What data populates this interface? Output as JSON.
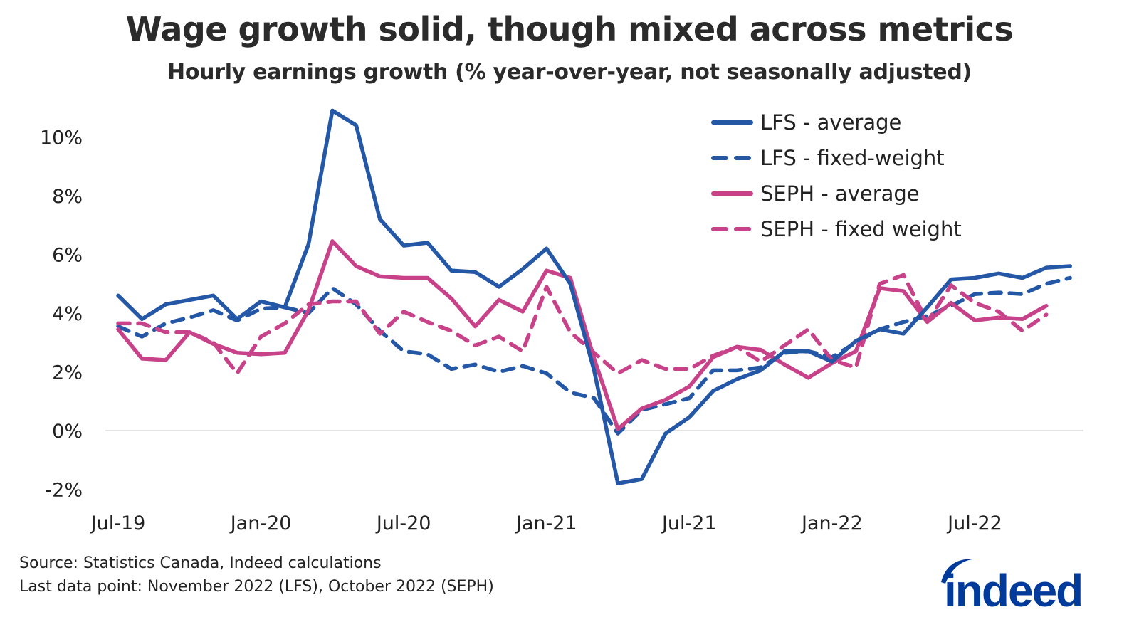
{
  "chart_data": {
    "type": "line",
    "title": "Wage growth solid, though mixed across metrics",
    "subtitle": "Hourly earnings growth (% year-over-year, not seasonally adjusted)",
    "xlabel": "",
    "ylabel": "",
    "ylim": [
      -2,
      11
    ],
    "y_ticks": [
      -2,
      0,
      2,
      4,
      6,
      8,
      10
    ],
    "y_tick_labels": [
      "-2%",
      "0%",
      "2%",
      "4%",
      "6%",
      "8%",
      "10%"
    ],
    "x_start": "2019-07",
    "x_end": "2022-11",
    "x_tick_labels": [
      "Jul-19",
      "Jan-20",
      "Jul-20",
      "Jan-21",
      "Jul-21",
      "Jan-22",
      "Jul-22"
    ],
    "x_tick_month_index": [
      0,
      6,
      12,
      18,
      24,
      30,
      36
    ],
    "grid": false,
    "zero_line": true,
    "legend_position": "top-right",
    "series": [
      {
        "name": "LFS - average",
        "color": "#2557a7",
        "style": "solid",
        "start_index": 0,
        "values": [
          4.6,
          3.8,
          4.3,
          4.45,
          4.6,
          3.8,
          4.4,
          4.2,
          6.35,
          10.9,
          10.4,
          7.2,
          6.3,
          6.4,
          5.45,
          5.4,
          4.9,
          5.5,
          6.2,
          5.0,
          2.05,
          -1.8,
          -1.65,
          -0.1,
          0.45,
          1.35,
          1.75,
          2.05,
          2.7,
          2.7,
          2.35,
          3.05,
          3.45,
          3.3,
          4.2,
          5.15,
          5.2,
          5.35,
          5.2,
          5.55,
          5.6
        ]
      },
      {
        "name": "LFS - fixed-weight",
        "color": "#2557a7",
        "style": "dashed",
        "start_index": 0,
        "values": [
          3.55,
          3.2,
          3.65,
          3.85,
          4.1,
          3.75,
          4.15,
          4.2,
          4.0,
          4.85,
          4.3,
          3.4,
          2.7,
          2.6,
          2.1,
          2.25,
          2.0,
          2.2,
          1.95,
          1.3,
          1.1,
          -0.1,
          0.7,
          0.9,
          1.1,
          2.05,
          2.05,
          2.15,
          2.65,
          2.7,
          2.5,
          3.0,
          3.45,
          3.7,
          3.9,
          4.25,
          4.65,
          4.7,
          4.65,
          5.0,
          5.2
        ]
      },
      {
        "name": "SEPH - average",
        "color": "#c74289",
        "style": "solid",
        "start_index": 0,
        "values": [
          3.45,
          2.45,
          2.4,
          3.35,
          2.95,
          2.65,
          2.6,
          2.65,
          4.1,
          6.45,
          5.6,
          5.25,
          5.2,
          5.2,
          4.5,
          3.55,
          4.45,
          4.05,
          5.45,
          5.2,
          2.45,
          0.05,
          0.75,
          1.05,
          1.5,
          2.5,
          2.85,
          2.75,
          2.25,
          1.8,
          2.3,
          2.7,
          4.85,
          4.75,
          3.7,
          4.35,
          3.75,
          3.85,
          3.8,
          4.25
        ]
      },
      {
        "name": "SEPH - fixed weight",
        "color": "#c74289",
        "style": "dashed",
        "start_index": 0,
        "values": [
          3.65,
          3.65,
          3.35,
          3.35,
          3.0,
          1.95,
          3.2,
          3.65,
          4.3,
          4.4,
          4.4,
          3.3,
          4.05,
          3.7,
          3.4,
          2.9,
          3.2,
          2.7,
          4.9,
          3.35,
          2.65,
          1.95,
          2.4,
          2.1,
          2.1,
          2.55,
          2.85,
          2.35,
          2.9,
          3.45,
          2.4,
          2.15,
          5.0,
          5.3,
          3.7,
          4.95,
          4.35,
          4.05,
          3.4,
          3.95
        ]
      }
    ]
  },
  "footer": {
    "source": "Source: Statistics Canada, Indeed calculations",
    "last_data_point": "Last data point: November 2022 (LFS), October 2022 (SEPH)"
  },
  "logo": {
    "text": "indeed",
    "color": "#003a9b"
  }
}
